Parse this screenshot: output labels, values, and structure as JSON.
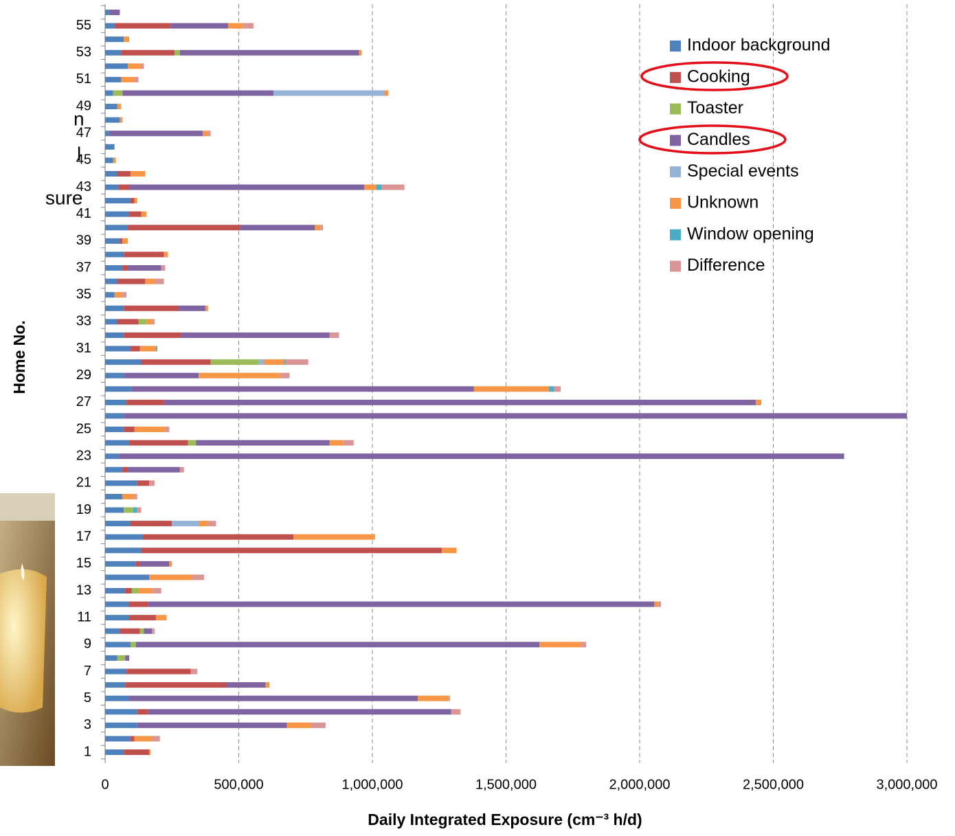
{
  "side_text": [
    "n",
    "l",
    "sure"
  ],
  "chart_data": {
    "type": "stacked-barh",
    "x_label": "Daily Integrated Exposure (cm⁻³ h/d)",
    "y_label": "Home No.",
    "categories": [
      "1",
      null,
      "3",
      null,
      "5",
      null,
      "7",
      null,
      "9",
      null,
      "11",
      null,
      "13",
      null,
      "15",
      null,
      "17",
      null,
      "19",
      null,
      "21",
      null,
      "23",
      null,
      "25",
      null,
      "27",
      null,
      "29",
      null,
      "31",
      null,
      "33",
      null,
      "35",
      null,
      "37",
      null,
      "39",
      null,
      "41",
      null,
      "43",
      null,
      "45",
      null,
      "47",
      null,
      "49",
      null,
      "51",
      null,
      "53",
      null,
      "55",
      null
    ],
    "xlim": [
      0,
      3000000
    ],
    "xticks": [
      0,
      {
        "value": 500000,
        "label": "500,000"
      },
      {
        "value": 1000000,
        "label": "1,000,000"
      },
      {
        "value": 1500000,
        "label": "1,500,000"
      },
      {
        "value": 2000000,
        "label": "2,000,000"
      },
      {
        "value": 2500000,
        "label": "2,500,000"
      },
      {
        "value": 3000000,
        "label": "3,000,000"
      }
    ],
    "grid": true,
    "legend": "upper right",
    "series": [
      {
        "name": "Indoor background",
        "color": "#4f81bd",
        "values": [
          70000,
          95000,
          120000,
          120000,
          90000,
          75000,
          80000,
          45000,
          95000,
          55000,
          90000,
          90000,
          75000,
          165000,
          115000,
          135000,
          140000,
          95000,
          70000,
          65000,
          120000,
          65000,
          50000,
          90000,
          70000,
          70000,
          80000,
          100000,
          70000,
          135000,
          95000,
          70000,
          45000,
          70000,
          35000,
          45000,
          65000,
          70000,
          55000,
          85000,
          90000,
          95000,
          50000,
          45000,
          30000,
          35000,
          15000,
          55000,
          45000,
          30000,
          60000,
          85000,
          60000,
          70000,
          35000,
          15000
        ]
      },
      {
        "name": "Cooking",
        "color": "#c0504d",
        "values": [
          95000,
          15000,
          0,
          40000,
          0,
          380000,
          240000,
          0,
          0,
          75000,
          100000,
          70000,
          25000,
          0,
          15000,
          1125000,
          565000,
          155000,
          0,
          0,
          45000,
          20000,
          0,
          220000,
          40000,
          0,
          140000,
          0,
          0,
          260000,
          35000,
          215000,
          80000,
          205000,
          0,
          105000,
          20000,
          150000,
          10000,
          420000,
          45000,
          15000,
          40000,
          50000,
          0,
          0,
          0,
          0,
          0,
          0,
          0,
          0,
          200000,
          0,
          210000,
          0
        ]
      },
      {
        "name": "Toaster",
        "color": "#9bbb59",
        "values": [
          0,
          0,
          0,
          0,
          0,
          0,
          0,
          30000,
          20000,
          15000,
          0,
          0,
          25000,
          0,
          0,
          0,
          0,
          0,
          35000,
          0,
          0,
          0,
          0,
          30000,
          0,
          0,
          0,
          0,
          0,
          180000,
          0,
          0,
          30000,
          0,
          0,
          0,
          0,
          0,
          0,
          0,
          0,
          0,
          0,
          0,
          0,
          0,
          0,
          0,
          0,
          35000,
          0,
          0,
          20000,
          0,
          0,
          0
        ]
      },
      {
        "name": "Candles",
        "color": "#8064a2",
        "values": [
          0,
          0,
          560000,
          1135000,
          1080000,
          145000,
          0,
          15000,
          1510000,
          30000,
          0,
          1895000,
          0,
          0,
          110000,
          0,
          0,
          0,
          0,
          0,
          0,
          195000,
          2715000,
          500000,
          0,
          2930000,
          2215000,
          1280000,
          280000,
          0,
          0,
          555000,
          0,
          100000,
          0,
          0,
          125000,
          0,
          0,
          280000,
          0,
          0,
          880000,
          0,
          0,
          0,
          350000,
          0,
          0,
          565000,
          0,
          0,
          670000,
          0,
          215000,
          40000
        ]
      },
      {
        "name": "Special events",
        "color": "#95b3d7",
        "values": [
          0,
          0,
          0,
          0,
          0,
          0,
          0,
          0,
          0,
          0,
          0,
          0,
          0,
          0,
          0,
          0,
          0,
          100000,
          0,
          0,
          0,
          0,
          0,
          0,
          0,
          0,
          0,
          0,
          0,
          20000,
          0,
          0,
          0,
          0,
          0,
          0,
          0,
          0,
          0,
          0,
          0,
          0,
          0,
          0,
          0,
          0,
          0,
          0,
          0,
          415000,
          0,
          0,
          0,
          0,
          0,
          0
        ]
      },
      {
        "name": "Unknown",
        "color": "#f79646",
        "values": [
          5000,
          65000,
          90000,
          0,
          115000,
          15000,
          0,
          0,
          155000,
          0,
          40000,
          15000,
          50000,
          160000,
          10000,
          55000,
          305000,
          35000,
          0,
          45000,
          0,
          0,
          0,
          50000,
          115000,
          0,
          20000,
          280000,
          305000,
          75000,
          60000,
          0,
          20000,
          10000,
          30000,
          35000,
          0,
          15000,
          20000,
          20000,
          20000,
          10000,
          45000,
          55000,
          10000,
          0,
          20000,
          10000,
          15000,
          15000,
          50000,
          50000,
          10000,
          20000,
          55000,
          0
        ]
      },
      {
        "name": "Window opening",
        "color": "#4bacc6",
        "values": [
          0,
          0,
          0,
          0,
          0,
          0,
          0,
          0,
          0,
          0,
          0,
          0,
          0,
          0,
          0,
          0,
          0,
          0,
          15000,
          0,
          0,
          0,
          0,
          0,
          0,
          0,
          0,
          20000,
          0,
          5000,
          5000,
          0,
          0,
          0,
          0,
          0,
          0,
          0,
          0,
          0,
          0,
          0,
          20000,
          0,
          0,
          0,
          0,
          0,
          0,
          0,
          0,
          0,
          0,
          0,
          0,
          0
        ]
      },
      {
        "name": "Difference",
        "color": "#d99694",
        "values": [
          0,
          30000,
          55000,
          35000,
          5000,
          0,
          25000,
          0,
          20000,
          10000,
          0,
          10000,
          35000,
          45000,
          0,
          0,
          0,
          30000,
          15000,
          10000,
          20000,
          15000,
          0,
          40000,
          15000,
          0,
          0,
          25000,
          35000,
          85000,
          0,
          35000,
          10000,
          0,
          15000,
          35000,
          15000,
          0,
          0,
          10000,
          0,
          0,
          85000,
          0,
          0,
          0,
          10000,
          0,
          0,
          0,
          15000,
          10000,
          0,
          0,
          40000,
          0
        ]
      }
    ]
  }
}
